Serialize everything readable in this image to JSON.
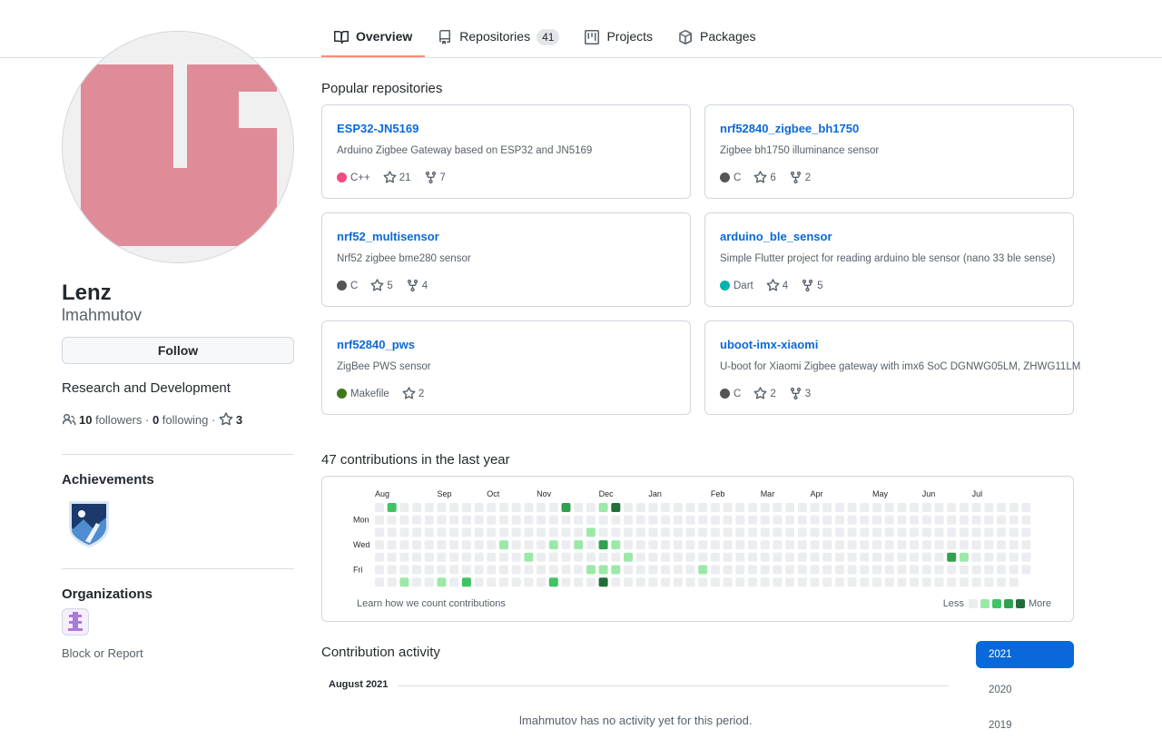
{
  "tabs": [
    {
      "label": "Overview",
      "icon": "book-icon",
      "active": true
    },
    {
      "label": "Repositories",
      "icon": "repo-icon",
      "count": "41"
    },
    {
      "label": "Projects",
      "icon": "project-icon"
    },
    {
      "label": "Packages",
      "icon": "package-icon"
    }
  ],
  "profile": {
    "name": "Lenz",
    "login": "lmahmutov",
    "follow_label": "Follow",
    "bio": "Research and Development",
    "followers_count": "10",
    "followers_label": " followers · ",
    "following_count": "0",
    "following_label": " following · ",
    "stars_count": "3",
    "achievements_title": "Achievements",
    "organizations_title": "Organizations",
    "block_report": "Block or Report",
    "avatar_color": "#df8c98"
  },
  "popular": {
    "title": "Popular repositories",
    "repos": [
      {
        "name": "ESP32-JN5169",
        "desc": "Arduino Zigbee Gateway based on ESP32 and JN5169",
        "lang": "C++",
        "lang_color": "#f34b7d",
        "stars": "21",
        "forks": "7"
      },
      {
        "name": "nrf52840_zigbee_bh1750",
        "desc": "Zigbee bh1750 illuminance sensor",
        "lang": "C",
        "lang_color": "#555555",
        "stars": "6",
        "forks": "2"
      },
      {
        "name": "nrf52_multisensor",
        "desc": "Nrf52 zigbee bme280 sensor",
        "lang": "C",
        "lang_color": "#555555",
        "stars": "5",
        "forks": "4"
      },
      {
        "name": "arduino_ble_sensor",
        "desc": "Simple Flutter project for reading arduino ble sensor (nano 33 ble sense)",
        "lang": "Dart",
        "lang_color": "#00B4AB",
        "stars": "4",
        "forks": "5"
      },
      {
        "name": "nrf52840_pws",
        "desc": "ZigBee PWS sensor",
        "lang": "Makefile",
        "lang_color": "#427819",
        "stars": "2",
        "forks": ""
      },
      {
        "name": "uboot-imx-xiaomi",
        "desc": "U-boot for Xiaomi Zigbee gateway with imx6 SoC DGNWG05LM, ZHWG11LM",
        "lang": "C",
        "lang_color": "#555555",
        "stars": "2",
        "forks": "3"
      }
    ]
  },
  "contributions": {
    "title": "47 contributions in the last year",
    "months": [
      "Aug",
      "Sep",
      "Oct",
      "Nov",
      "Dec",
      "Jan",
      "Feb",
      "Mar",
      "Apr",
      "May",
      "Jun",
      "Jul"
    ],
    "month_weeks": [
      0,
      5,
      9,
      13,
      18,
      22,
      27,
      31,
      35,
      40,
      44,
      48
    ],
    "days": [
      "Mon",
      "Wed",
      "Fri"
    ],
    "weeks": 53,
    "last_week_days": 6,
    "levels_colors": [
      "#ebedf0",
      "#9be9a8",
      "#40c463",
      "#30a14e",
      "#216e39"
    ],
    "cells": [
      [
        1,
        0,
        2
      ],
      [
        2,
        6,
        1
      ],
      [
        5,
        6,
        1
      ],
      [
        7,
        6,
        2
      ],
      [
        10,
        3,
        1
      ],
      [
        12,
        4,
        1
      ],
      [
        14,
        3,
        1
      ],
      [
        14,
        6,
        2
      ],
      [
        15,
        0,
        3
      ],
      [
        16,
        3,
        1
      ],
      [
        17,
        2,
        1
      ],
      [
        17,
        5,
        1
      ],
      [
        18,
        0,
        1
      ],
      [
        18,
        3,
        3
      ],
      [
        18,
        5,
        1
      ],
      [
        18,
        6,
        4
      ],
      [
        19,
        0,
        4
      ],
      [
        19,
        3,
        1
      ],
      [
        19,
        5,
        1
      ],
      [
        20,
        4,
        1
      ],
      [
        26,
        5,
        1
      ],
      [
        46,
        4,
        3
      ],
      [
        47,
        4,
        1
      ]
    ],
    "learn_label": "Learn how we count contributions",
    "less_label": "Less",
    "more_label": "More"
  },
  "activity": {
    "title": "Contribution activity",
    "month_label": "August 2021",
    "years": [
      "2021",
      "2020",
      "2019"
    ],
    "active_year": "2021",
    "empty_text": "lmahmutov has no activity yet for this period."
  }
}
